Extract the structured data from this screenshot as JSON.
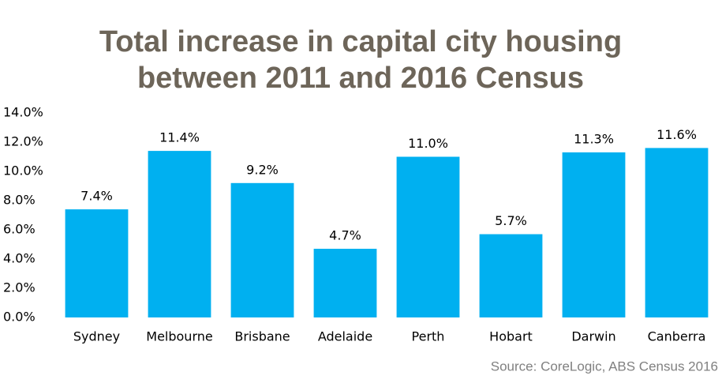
{
  "chart_data": {
    "type": "bar",
    "title": "Total increase in capital city housing between 2011 and 2016 Census",
    "source": "Source: CoreLogic, ABS Census 2016",
    "categories": [
      "Sydney",
      "Melbourne",
      "Brisbane",
      "Adelaide",
      "Perth",
      "Hobart",
      "Darwin",
      "Canberra"
    ],
    "values": [
      7.4,
      11.4,
      9.2,
      4.7,
      11.0,
      5.7,
      11.3,
      11.6
    ],
    "value_labels": [
      "7.4%",
      "11.4%",
      "9.2%",
      "4.7%",
      "11.0%",
      "5.7%",
      "11.3%",
      "11.6%"
    ],
    "color": "#00b0f0",
    "ylim": [
      0,
      14
    ],
    "yticks": [
      {
        "value": 0,
        "label": "0.0%"
      },
      {
        "value": 2,
        "label": "2.0%"
      },
      {
        "value": 4,
        "label": "4.0%"
      },
      {
        "value": 6,
        "label": "6.0%"
      },
      {
        "value": 8,
        "label": "8.0%"
      },
      {
        "value": 10,
        "label": "10.0%"
      },
      {
        "value": 12,
        "label": "12.0%"
      },
      {
        "value": 14,
        "label": "14.0%"
      }
    ],
    "grid": false
  }
}
